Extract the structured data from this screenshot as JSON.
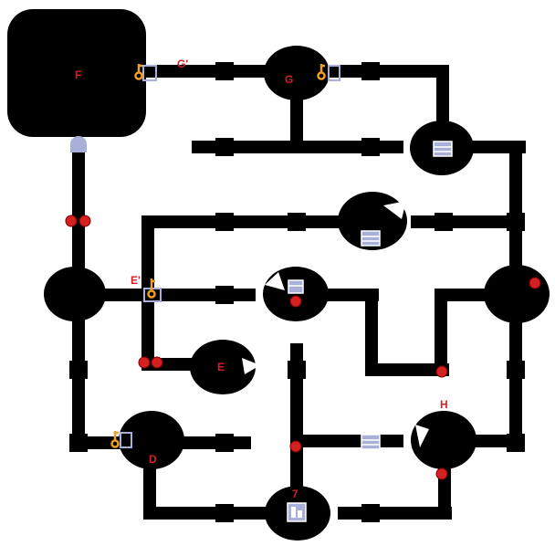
{
  "map": {
    "rooms": [
      {
        "id": "F",
        "label": "F"
      },
      {
        "id": "G",
        "label": "G"
      },
      {
        "id": "D",
        "label": "D"
      },
      {
        "id": "E",
        "label": "E"
      },
      {
        "id": "H",
        "label": "H"
      },
      {
        "id": "7",
        "label": "7"
      }
    ],
    "door_labels": {
      "g_prime": "G'",
      "e_prime": "E'"
    },
    "colors": {
      "wall": "#000000",
      "background": "#ffffff",
      "room_label": "#d81e1e",
      "key": "#f0a020",
      "lock": "#a8b0d8",
      "orb": "#d42020"
    },
    "legend_icons": [
      "key-icon",
      "lock-icon",
      "chest-icon",
      "red-orb-icon",
      "stairs-icon"
    ]
  }
}
